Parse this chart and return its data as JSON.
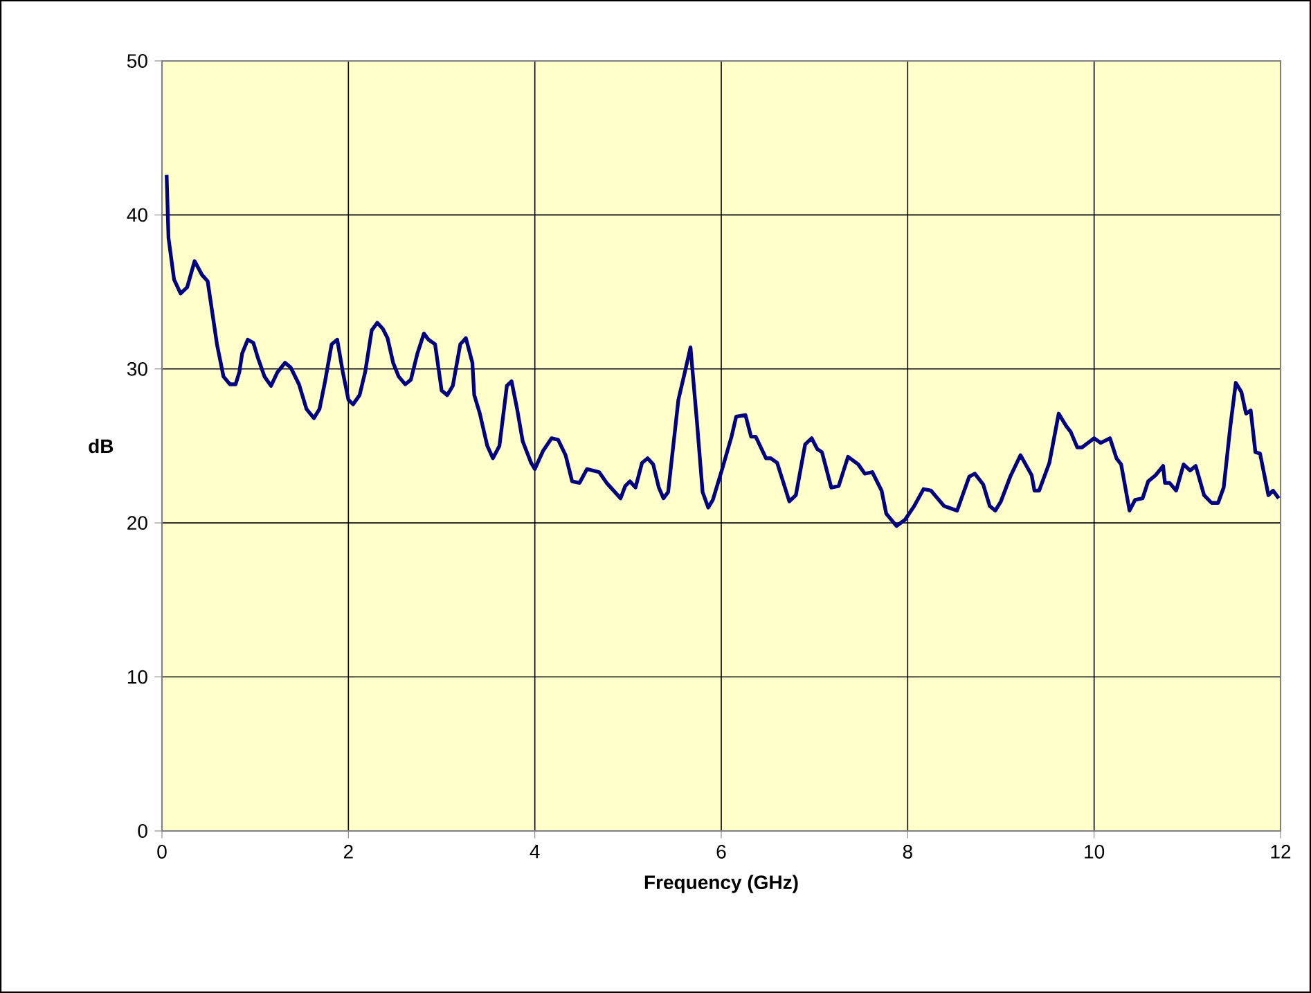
{
  "chart_data": {
    "type": "line",
    "xlabel": "Frequency (GHz)",
    "ylabel": "dB",
    "color": "#000080",
    "grid": true,
    "xlim": [
      0,
      12
    ],
    "ylim": [
      0,
      50
    ],
    "xticks": [
      0,
      2,
      4,
      6,
      8,
      10,
      12
    ],
    "yticks": [
      0,
      10,
      20,
      30,
      40,
      50
    ],
    "x": [
      0.05,
      0.07,
      0.13,
      0.2,
      0.27,
      0.35,
      0.43,
      0.49,
      0.59,
      0.66,
      0.73,
      0.79,
      0.83,
      0.86,
      0.92,
      0.98,
      1.03,
      1.1,
      1.17,
      1.24,
      1.32,
      1.38,
      1.47,
      1.55,
      1.63,
      1.69,
      1.75,
      1.82,
      1.88,
      1.94,
      2.0,
      2.05,
      2.12,
      2.18,
      2.25,
      2.31,
      2.37,
      2.42,
      2.48,
      2.54,
      2.61,
      2.67,
      2.74,
      2.81,
      2.86,
      2.93,
      3.0,
      3.06,
      3.12,
      3.2,
      3.26,
      3.33,
      3.35,
      3.41,
      3.49,
      3.55,
      3.62,
      3.7,
      3.75,
      3.81,
      3.87,
      3.96,
      4.0,
      4.09,
      4.18,
      4.25,
      4.33,
      4.4,
      4.48,
      4.56,
      4.69,
      4.77,
      4.92,
      4.97,
      5.02,
      5.08,
      5.15,
      5.21,
      5.27,
      5.33,
      5.38,
      5.43,
      5.54,
      5.61,
      5.67,
      5.74,
      5.8,
      5.86,
      5.91,
      6.01,
      6.11,
      6.16,
      6.26,
      6.32,
      6.37,
      6.48,
      6.53,
      6.6,
      6.73,
      6.8,
      6.9,
      6.97,
      7.03,
      7.08,
      7.18,
      7.26,
      7.36,
      7.47,
      7.54,
      7.62,
      7.72,
      7.77,
      7.88,
      7.97,
      8.07,
      8.17,
      8.25,
      8.39,
      8.53,
      8.66,
      8.72,
      8.81,
      8.88,
      8.94,
      9.0,
      9.1,
      9.21,
      9.33,
      9.36,
      9.41,
      9.52,
      9.62,
      9.7,
      9.75,
      9.82,
      9.87,
      10.0,
      10.07,
      10.17,
      10.24,
      10.29,
      10.38,
      10.44,
      10.52,
      10.58,
      10.66,
      10.74,
      10.76,
      10.81,
      10.88,
      10.96,
      11.03,
      11.09,
      11.18,
      11.26,
      11.33,
      11.39,
      11.46,
      11.52,
      11.58,
      11.63,
      11.68,
      11.73,
      11.78,
      11.87,
      11.92,
      11.98
    ],
    "values": [
      42.6,
      38.5,
      35.8,
      34.9,
      35.3,
      37.0,
      36.1,
      35.7,
      31.6,
      29.5,
      29.0,
      29.0,
      29.8,
      31.0,
      31.9,
      31.7,
      30.7,
      29.5,
      28.9,
      29.8,
      30.4,
      30.1,
      29.0,
      27.4,
      26.8,
      27.4,
      29.2,
      31.6,
      31.9,
      29.8,
      28.0,
      27.7,
      28.3,
      29.8,
      32.5,
      33.0,
      32.6,
      32.0,
      30.4,
      29.5,
      29.0,
      29.3,
      31.0,
      32.3,
      31.9,
      31.6,
      28.6,
      28.3,
      28.9,
      31.6,
      32.0,
      30.4,
      28.3,
      27.1,
      25.0,
      24.2,
      25.0,
      28.9,
      29.2,
      27.4,
      25.3,
      23.9,
      23.5,
      24.7,
      25.5,
      25.4,
      24.4,
      22.7,
      22.6,
      23.5,
      23.3,
      22.6,
      21.6,
      22.4,
      22.7,
      22.3,
      23.9,
      24.2,
      23.8,
      22.3,
      21.6,
      22.0,
      28.0,
      29.8,
      31.4,
      26.5,
      22.0,
      21.0,
      21.5,
      23.5,
      25.6,
      26.9,
      27.0,
      25.6,
      25.6,
      24.2,
      24.2,
      23.9,
      21.4,
      21.8,
      25.1,
      25.5,
      24.8,
      24.6,
      22.3,
      22.4,
      24.3,
      23.8,
      23.2,
      23.3,
      22.1,
      20.6,
      19.8,
      20.2,
      21.1,
      22.2,
      22.1,
      21.1,
      20.8,
      23.0,
      23.2,
      22.5,
      21.1,
      20.8,
      21.4,
      23.0,
      24.4,
      23.1,
      22.1,
      22.1,
      23.9,
      27.1,
      26.3,
      25.9,
      24.9,
      24.9,
      25.5,
      25.2,
      25.5,
      24.2,
      23.8,
      20.8,
      21.5,
      21.6,
      22.7,
      23.1,
      23.7,
      22.6,
      22.6,
      22.1,
      23.8,
      23.4,
      23.7,
      21.8,
      21.3,
      21.3,
      22.3,
      26.2,
      29.1,
      28.5,
      27.1,
      27.3,
      24.6,
      24.5,
      21.8,
      22.1,
      21.6
    ]
  }
}
